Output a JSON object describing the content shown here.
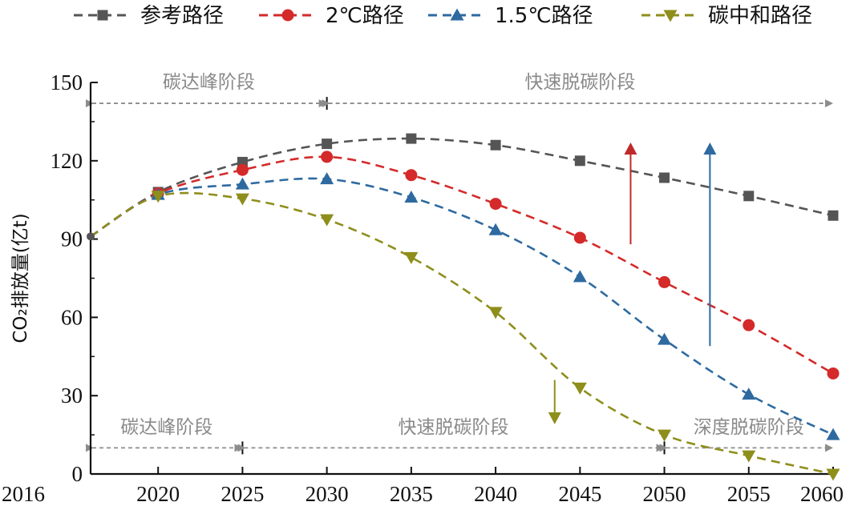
{
  "chart_data": {
    "type": "line",
    "title": "",
    "xlabel": "",
    "ylabel": "CO₂排放量(亿t)",
    "xlim": [
      2016,
      2060
    ],
    "ylim": [
      0,
      150
    ],
    "x_ticks": [
      2016,
      2020,
      2025,
      2030,
      2035,
      2040,
      2045,
      2050,
      2055,
      2060
    ],
    "y_ticks": [
      0,
      30,
      60,
      90,
      120,
      150
    ],
    "x_tick_labels": [
      "2016",
      "2020",
      "2025",
      "2030",
      "2035",
      "2040",
      "2045",
      "2050",
      "2055",
      "2060"
    ],
    "y_tick_labels": [
      "0",
      "30",
      "60",
      "90",
      "120",
      "150"
    ],
    "legend_position": "top",
    "grid": false,
    "series": [
      {
        "name": "参考路径",
        "color": "#555555",
        "marker": "square",
        "x": [
          2020,
          2025,
          2030,
          2035,
          2040,
          2045,
          2050,
          2055,
          2060
        ],
        "values": [
          108,
          119.5,
          126.5,
          128.5,
          126,
          120,
          113.5,
          106.5,
          99
        ]
      },
      {
        "name": "2℃路径",
        "color": "#d42a2a",
        "marker": "circle",
        "x": [
          2020,
          2025,
          2030,
          2035,
          2040,
          2045,
          2050,
          2055,
          2060
        ],
        "values": [
          107.5,
          116.5,
          121.5,
          114.5,
          103.5,
          90.5,
          73.5,
          57,
          38.5
        ]
      },
      {
        "name": "1.5℃路径",
        "color": "#2e6aa0",
        "marker": "triangle-up",
        "x": [
          2020,
          2025,
          2030,
          2035,
          2040,
          2045,
          2050,
          2055,
          2060
        ],
        "values": [
          107,
          111,
          113,
          106,
          93.5,
          75.5,
          51.5,
          30.5,
          15
        ]
      },
      {
        "name": "碳中和路径",
        "color": "#8e8e1c",
        "marker": "triangle-down",
        "x": [
          2020,
          2025,
          2030,
          2035,
          2040,
          2045,
          2050,
          2055,
          2060
        ],
        "values": [
          106.5,
          105.5,
          97.5,
          83,
          62,
          33,
          15,
          7,
          0
        ]
      }
    ],
    "start_point": {
      "x": 2016,
      "y": 91
    },
    "phases_top": [
      {
        "label": "碳达峰阶段",
        "from": 2016,
        "to": 2030
      },
      {
        "label": "快速脱碳阶段",
        "from": 2030,
        "to": 2060
      }
    ],
    "phases_bottom": [
      {
        "label": "碳达峰阶段",
        "from": 2016,
        "to": 2025
      },
      {
        "label": "快速脱碳阶段",
        "from": 2025,
        "to": 2050
      },
      {
        "label": "深度脱碳阶段",
        "from": 2050,
        "to": 2060
      }
    ],
    "phase_arrow_y_top": 142,
    "phase_arrow_y_bottom": 10,
    "annotation_arrows": [
      {
        "name": "red-up-arrow",
        "x": 2048,
        "from_y": 88,
        "to_y": 127,
        "color": "#c0292b"
      },
      {
        "name": "blue-up-arrow",
        "x": 2052.7,
        "from_y": 49,
        "to_y": 127,
        "color": "#2e6aa0"
      },
      {
        "name": "olive-down-arrow",
        "x": 2043.5,
        "from_y": 36,
        "to_y": 19,
        "color": "#8e8e1c"
      }
    ]
  }
}
